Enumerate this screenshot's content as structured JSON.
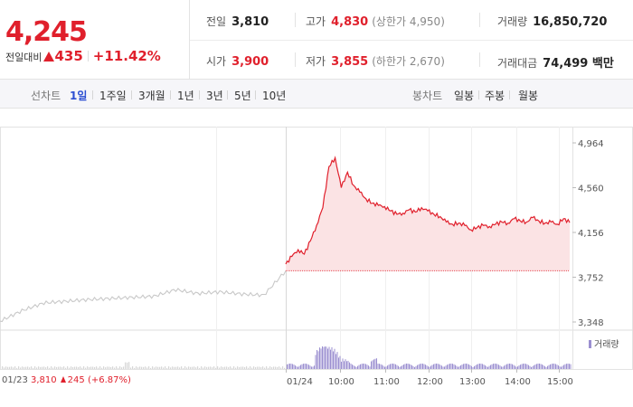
{
  "summary": {
    "price": "4,245",
    "change_label": "전일대비",
    "change_amount": "435",
    "change_rate": "+11.42%",
    "prev_close_label": "전일",
    "prev_close": "3,810",
    "high_label": "고가",
    "high": "4,830",
    "upper_limit": "(상한가 4,950)",
    "volume_label": "거래량",
    "volume": "16,850,720",
    "open_label": "시가",
    "open": "3,900",
    "low_label": "저가",
    "low": "3,855",
    "lower_limit": "(하한가 2,670)",
    "amount_label": "거래대금",
    "amount": "74,499 백만"
  },
  "tabs": {
    "line_chart_label": "선차트",
    "periods": [
      "1일",
      "1주일",
      "3개월",
      "1년",
      "3년",
      "5년",
      "10년"
    ],
    "active_period": "1일",
    "candle_chart_label": "봉차트",
    "candles": [
      "일봉",
      "주봉",
      "월봉"
    ]
  },
  "chart": {
    "volume_legend": "거래량",
    "prev_day_info": {
      "date": "01/23",
      "close": "3,810",
      "change": "245",
      "rate": "(+6.87%)"
    },
    "colors": {
      "up": "#e0202c",
      "prev_line": "#c8c8c8",
      "fill": "#fbe3e4",
      "volume": "#9b8fd0"
    }
  },
  "chart_data": {
    "type": "line",
    "ylim": [
      3348,
      4964
    ],
    "y_ticks": [
      "4,964",
      "4,560",
      "4,156",
      "3,752",
      "3,348"
    ],
    "x_ticks": [
      "01/24",
      "10:00",
      "11:00",
      "12:00",
      "13:00",
      "14:00",
      "15:00"
    ],
    "prev_close": 3810,
    "series": [
      {
        "x": [
          "01/23 09:00",
          "01/23 09:30",
          "01/23 10:00",
          "01/23 10:30",
          "01/23 11:00",
          "01/23 11:30",
          "01/23 12:00",
          "01/23 12:30",
          "01/23 13:00",
          "01/23 13:30",
          "01/23 14:00",
          "01/23 14:30",
          "01/23 15:00",
          "01/23 15:20"
        ],
        "values": [
          3355,
          3450,
          3520,
          3535,
          3550,
          3560,
          3570,
          3580,
          3640,
          3605,
          3620,
          3600,
          3590,
          3810
        ]
      },
      {
        "x": [
          "09:00",
          "09:05",
          "09:10",
          "09:15",
          "09:20",
          "09:25",
          "09:30",
          "09:35",
          "09:40",
          "09:45",
          "09:50",
          "09:55",
          "10:00",
          "10:05",
          "10:10",
          "10:15",
          "10:20",
          "10:30",
          "10:40",
          "10:50",
          "11:00",
          "11:10",
          "11:20",
          "11:30",
          "11:40",
          "11:50",
          "12:00",
          "12:10",
          "12:20",
          "12:30",
          "12:40",
          "12:50",
          "13:00",
          "13:10",
          "13:20",
          "13:30",
          "13:40",
          "13:50",
          "14:00",
          "14:10",
          "14:20",
          "14:30",
          "14:40",
          "14:50",
          "15:00",
          "15:10",
          "15:20"
        ],
        "values": [
          3870,
          3940,
          4000,
          3960,
          4080,
          4220,
          4380,
          4750,
          4830,
          4560,
          4700,
          4580,
          4520,
          4460,
          4420,
          4400,
          4390,
          4350,
          4320,
          4330,
          4360,
          4340,
          4380,
          4350,
          4320,
          4300,
          4250,
          4230,
          4240,
          4220,
          4180,
          4200,
          4220,
          4210,
          4230,
          4250,
          4240,
          4280,
          4260,
          4250,
          4290,
          4260,
          4240,
          4250,
          4230,
          4280,
          4245
        ]
      }
    ]
  }
}
